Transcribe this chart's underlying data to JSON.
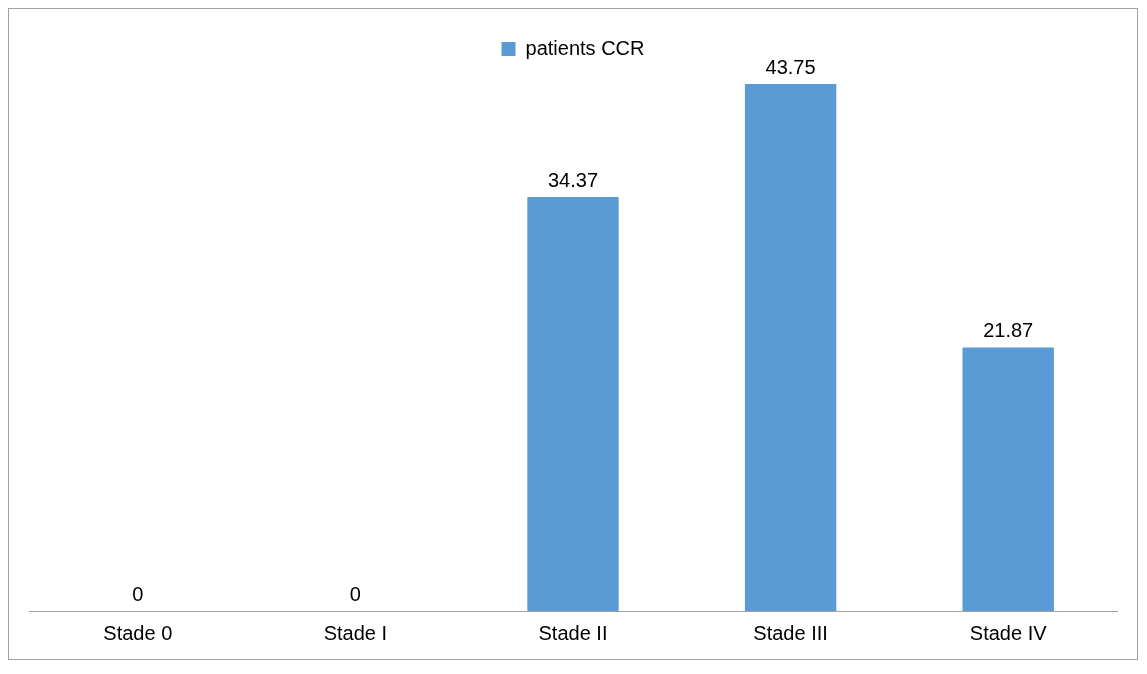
{
  "chart_data": {
    "type": "bar",
    "categories": [
      "Stade 0",
      "Stade I",
      "Stade II",
      "Stade III",
      "Stade IV"
    ],
    "series": [
      {
        "name": "patients CCR",
        "color": "#5b9bd5",
        "values": [
          0,
          0,
          34.37,
          43.75,
          21.87
        ]
      }
    ],
    "data_labels": true,
    "legend": "top",
    "grid": false,
    "tick_labels": "x"
  }
}
